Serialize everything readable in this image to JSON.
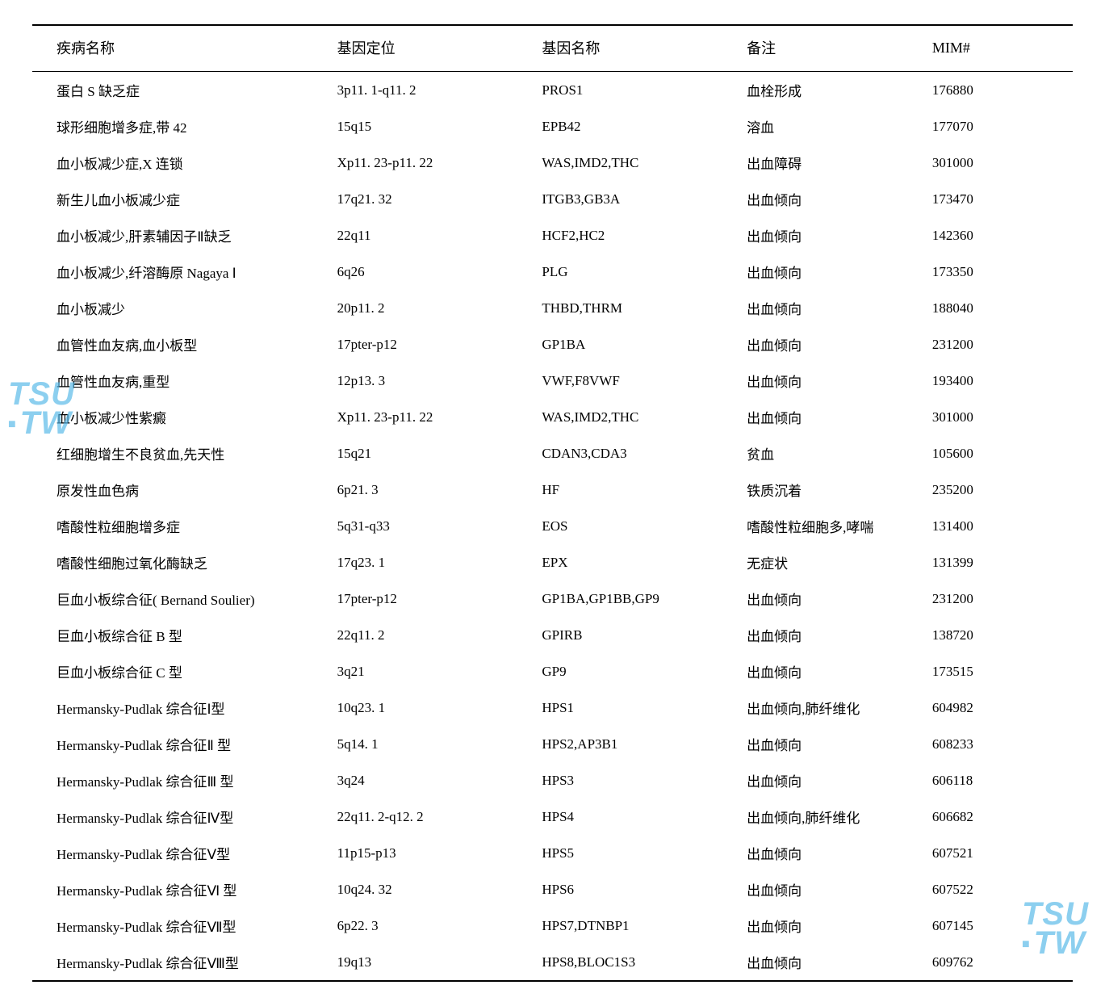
{
  "table": {
    "columns": [
      "疾病名称",
      "基因定位",
      "基因名称",
      "备注",
      "MIM#"
    ],
    "header_fontsize": 18,
    "body_fontsize": 17,
    "border_color": "#000000",
    "rows": [
      {
        "disease": "蛋白 S 缺乏症",
        "locus": "3p11. 1-q11. 2",
        "gene": "PROS1",
        "note": "血栓形成",
        "mim": "176880"
      },
      {
        "disease": "球形细胞增多症,带 42",
        "locus": "15q15",
        "gene": "EPB42",
        "note": "溶血",
        "mim": "177070"
      },
      {
        "disease": "血小板减少症,X 连锁",
        "locus": "Xp11. 23-p11. 22",
        "gene": "WAS,IMD2,THC",
        "note": "出血障碍",
        "mim": "301000"
      },
      {
        "disease": "新生儿血小板减少症",
        "locus": "17q21. 32",
        "gene": "ITGB3,GB3A",
        "note": "出血倾向",
        "mim": "173470"
      },
      {
        "disease": "血小板减少,肝素辅因子Ⅱ缺乏",
        "locus": "22q11",
        "gene": "HCF2,HC2",
        "note": "出血倾向",
        "mim": "142360"
      },
      {
        "disease": "血小板减少,纤溶酶原 Nagaya Ⅰ",
        "locus": "6q26",
        "gene": "PLG",
        "note": "出血倾向",
        "mim": "173350"
      },
      {
        "disease": "血小板减少",
        "locus": "20p11. 2",
        "gene": "THBD,THRM",
        "note": "出血倾向",
        "mim": "188040"
      },
      {
        "disease": "血管性血友病,血小板型",
        "locus": "17pter-p12",
        "gene": "GP1BA",
        "note": "出血倾向",
        "mim": "231200"
      },
      {
        "disease": "血管性血友病,重型",
        "locus": "12p13. 3",
        "gene": "VWF,F8VWF",
        "note": "出血倾向",
        "mim": "193400"
      },
      {
        "disease": "血小板减少性紫癜",
        "locus": "Xp11. 23-p11. 22",
        "gene": "WAS,IMD2,THC",
        "note": "出血倾向",
        "mim": "301000"
      },
      {
        "disease": "红细胞增生不良贫血,先天性",
        "locus": "15q21",
        "gene": "CDAN3,CDA3",
        "note": "贫血",
        "mim": "105600"
      },
      {
        "disease": "原发性血色病",
        "locus": "6p21. 3",
        "gene": "HF",
        "note": "铁质沉着",
        "mim": "235200"
      },
      {
        "disease": "嗜酸性粒细胞增多症",
        "locus": "5q31-q33",
        "gene": "EOS",
        "note": "嗜酸性粒细胞多,哮喘",
        "mim": "131400"
      },
      {
        "disease": "嗜酸性细胞过氧化酶缺乏",
        "locus": "17q23. 1",
        "gene": "EPX",
        "note": "无症状",
        "mim": "131399"
      },
      {
        "disease": "巨血小板综合征( Bernand Soulier)",
        "locus": "17pter-p12",
        "gene": "GP1BA,GP1BB,GP9",
        "note": "出血倾向",
        "mim": "231200"
      },
      {
        "disease": "巨血小板综合征 B 型",
        "locus": "22q11. 2",
        "gene": "GPIRB",
        "note": "出血倾向",
        "mim": "138720"
      },
      {
        "disease": "巨血小板综合征 C 型",
        "locus": "3q21",
        "gene": "GP9",
        "note": "出血倾向",
        "mim": "173515"
      },
      {
        "disease": "Hermansky-Pudlak 综合征Ⅰ型",
        "locus": "10q23. 1",
        "gene": "HPS1",
        "note": "出血倾向,肺纤维化",
        "mim": "604982"
      },
      {
        "disease": "Hermansky-Pudlak 综合征Ⅱ 型",
        "locus": "5q14. 1",
        "gene": "HPS2,AP3B1",
        "note": "出血倾向",
        "mim": "608233"
      },
      {
        "disease": "Hermansky-Pudlak 综合征Ⅲ 型",
        "locus": "3q24",
        "gene": "HPS3",
        "note": "出血倾向",
        "mim": "606118"
      },
      {
        "disease": "Hermansky-Pudlak 综合征Ⅳ型",
        "locus": "22q11. 2-q12. 2",
        "gene": "HPS4",
        "note": "出血倾向,肺纤维化",
        "mim": "606682"
      },
      {
        "disease": "Hermansky-Pudlak 综合征Ⅴ型",
        "locus": "11p15-p13",
        "gene": "HPS5",
        "note": "出血倾向",
        "mim": "607521"
      },
      {
        "disease": "Hermansky-Pudlak 综合征Ⅵ 型",
        "locus": "10q24. 32",
        "gene": "HPS6",
        "note": "出血倾向",
        "mim": "607522"
      },
      {
        "disease": "Hermansky-Pudlak 综合征Ⅶ型",
        "locus": "6p22. 3",
        "gene": "HPS7,DTNBP1",
        "note": "出血倾向",
        "mim": "607145"
      },
      {
        "disease": "Hermansky-Pudlak 综合征Ⅷ型",
        "locus": "19q13",
        "gene": "HPS8,BLOC1S3",
        "note": "出血倾向",
        "mim": "609762"
      }
    ]
  },
  "watermark": {
    "line1": "TSU",
    "line2": "TW",
    "color": "#4fb6e8",
    "opacity": 0.65,
    "fontsize": 40
  }
}
